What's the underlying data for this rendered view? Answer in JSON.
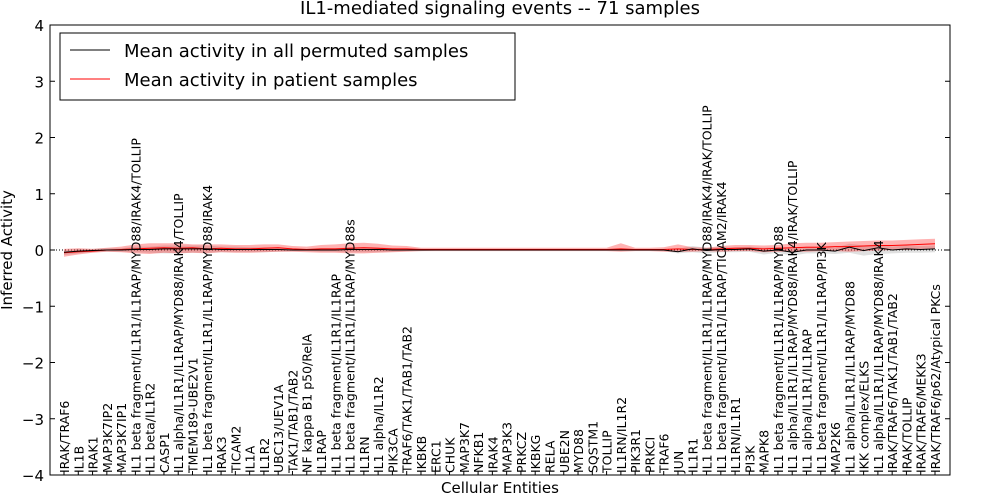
{
  "chart_data": {
    "type": "line",
    "title": "IL1-mediated signaling events -- 71 samples",
    "xlabel": "Cellular Entities",
    "ylabel": "Inferred Activity",
    "ylim": [
      -4,
      4
    ],
    "yticks": [
      "4",
      "3",
      "2",
      "1",
      "0",
      "−1",
      "−2",
      "−3",
      "−4"
    ],
    "ytick_values": [
      4,
      3,
      2,
      1,
      0,
      -1,
      -2,
      -3,
      -4
    ],
    "legend": {
      "position": "top-left",
      "entries": [
        {
          "label": "Mean activity in all permuted samples",
          "color": "#000000"
        },
        {
          "label": "Mean activity in patient samples",
          "color": "#ff0000"
        }
      ]
    },
    "categories": [
      "IRAK/TRAF6",
      "IL1B",
      "IRAK1",
      "MAP3K7IP2",
      "MAP3K7IP1",
      "IL1 beta fragment/IL1R1/IL1RAP/MYD88/IRAK4/TOLLIP",
      "IL1 beta/IL1R2",
      "CASP1",
      "IL1 alpha/IL1R1/IL1RAP/MYD88/IRAK4/TOLLIP",
      "TMEM189-UBE2V1",
      "IL1 beta fragment/IL1R1/IL1RAP/MYD88/IRAK4",
      "IRAK3",
      "TICAM2",
      "IL1A",
      "IL1R2",
      "UBC13/UEV1A",
      "TAK1/TAB1/TAB2",
      "NF kappa B1 p50/RelA",
      "IL1RAP",
      "IL1 beta fragment/IL1R1/IL1RAP",
      "IL1 beta fragment/IL1R1/IL1RAP/MYD88s",
      "IL1RN",
      "IL1 alpha/IL1R2",
      "PIK3CA",
      "TRAF6/TAK1/TAB1/TAB2",
      "IKBKB",
      "ERC1",
      "CHUK",
      "MAP3K7",
      "NFKB1",
      "IRAK4",
      "MAP3K3",
      "PRKCZ",
      "IKBKG",
      "RELA",
      "UBE2N",
      "MYD88",
      "SQSTM1",
      "TOLLIP",
      "IL1RN/IL1R2",
      "PIK3R1",
      "PRKCI",
      "TRAF6",
      "JUN",
      "IL1R1",
      "IL1 beta fragment/IL1R1/IL1RAP/MYD88/IRAK4/IRAK/TOLLIP",
      "IL1 beta fragment/IL1R1/IL1RAP/TICAM2/IRAK4",
      "IL1RN/IL1R1",
      "PI3K",
      "MAPK8",
      "IL1 beta fragment/IL1R1/IL1RAP/MYD88",
      "IL1 alpha/IL1R1/IL1RAP/MYD88/IRAK4/IRAK/TOLLIP",
      "IL1 alpha/IL1R1/IL1RAP",
      "IL1 beta fragment/IL1R1/IL1RAP/PI3K",
      "MAP2K6",
      "IL1 alpha/IL1R1/IL1RAP/MYD88",
      "IKK complex/ELKS",
      "IL1 alpha/IL1R1/IL1RAP/MYD88/IRAK4",
      "IRAK/TRAF6/TAK1/TAB1/TAB2",
      "IRAK/TOLLIP",
      "IRAK/TRAF6/MEKK3",
      "IRAK/TRAF6/p62/Atypical PKCs"
    ],
    "series": [
      {
        "name": "Mean activity in all permuted samples",
        "color": "#000000",
        "values": [
          -0.04,
          -0.02,
          -0.01,
          0.0,
          0.0,
          0.01,
          0.01,
          0.02,
          0.02,
          0.02,
          0.02,
          0.01,
          0.01,
          0.01,
          0.01,
          0.01,
          0.0,
          0.0,
          0.0,
          0.0,
          0.01,
          0.01,
          0.01,
          0.0,
          0.0,
          0.0,
          0.0,
          0.0,
          0.0,
          0.0,
          0.0,
          0.0,
          0.0,
          0.0,
          0.0,
          0.0,
          0.0,
          0.0,
          0.0,
          0.0,
          0.0,
          0.0,
          0.0,
          -0.03,
          0.02,
          -0.01,
          0.01,
          0.01,
          0.02,
          -0.02,
          0.0,
          -0.04,
          0.0,
          0.0,
          -0.02,
          0.05,
          -0.01,
          0.04,
          0.0,
          0.02,
          0.01,
          0.02
        ],
        "band_low": [
          -0.09,
          -0.06,
          -0.04,
          -0.03,
          -0.03,
          -0.04,
          -0.05,
          -0.06,
          -0.06,
          -0.05,
          -0.05,
          -0.04,
          -0.04,
          -0.04,
          -0.04,
          -0.03,
          -0.02,
          -0.02,
          -0.03,
          -0.03,
          -0.04,
          -0.04,
          -0.04,
          -0.03,
          -0.02,
          -0.02,
          -0.01,
          -0.01,
          -0.01,
          -0.01,
          -0.01,
          -0.01,
          -0.01,
          -0.01,
          -0.01,
          -0.01,
          -0.01,
          -0.01,
          -0.01,
          -0.01,
          -0.01,
          -0.01,
          -0.02,
          -0.06,
          -0.04,
          -0.06,
          -0.04,
          -0.04,
          -0.03,
          -0.08,
          -0.05,
          -0.1,
          -0.06,
          -0.06,
          -0.07,
          -0.05,
          -0.1,
          -0.07,
          -0.06,
          -0.05,
          -0.05,
          -0.04
        ],
        "band_high": [
          0.0,
          0.02,
          0.02,
          0.03,
          0.03,
          0.06,
          0.06,
          0.08,
          0.08,
          0.08,
          0.08,
          0.06,
          0.06,
          0.05,
          0.05,
          0.04,
          0.02,
          0.02,
          0.03,
          0.03,
          0.05,
          0.05,
          0.05,
          0.03,
          0.02,
          0.02,
          0.01,
          0.01,
          0.01,
          0.01,
          0.01,
          0.01,
          0.01,
          0.01,
          0.01,
          0.01,
          0.01,
          0.01,
          0.01,
          0.01,
          0.01,
          0.01,
          0.02,
          0.02,
          0.07,
          0.04,
          0.05,
          0.05,
          0.06,
          0.04,
          0.05,
          0.02,
          0.06,
          0.06,
          0.04,
          0.11,
          0.08,
          0.1,
          0.06,
          0.08,
          0.07,
          0.08
        ]
      },
      {
        "name": "Mean activity in patient samples",
        "color": "#ff0000",
        "values": [
          -0.05,
          -0.03,
          -0.02,
          0.0,
          0.01,
          0.02,
          0.03,
          0.04,
          0.03,
          0.04,
          0.02,
          0.03,
          0.02,
          0.02,
          0.03,
          0.04,
          0.02,
          0.01,
          0.02,
          0.02,
          0.03,
          0.04,
          0.03,
          0.02,
          0.02,
          0.01,
          0.01,
          0.01,
          0.01,
          0.01,
          0.01,
          0.01,
          0.01,
          0.01,
          0.01,
          0.01,
          0.01,
          0.01,
          0.01,
          0.02,
          0.01,
          0.01,
          0.01,
          0.02,
          0.01,
          0.01,
          0.02,
          0.03,
          0.03,
          0.02,
          0.03,
          0.04,
          0.05,
          0.05,
          0.06,
          0.06,
          0.07,
          0.08,
          0.08,
          0.09,
          0.1,
          0.11
        ],
        "band_low": [
          -0.12,
          -0.08,
          -0.05,
          -0.03,
          -0.04,
          -0.06,
          -0.07,
          -0.05,
          -0.06,
          -0.05,
          -0.06,
          -0.04,
          -0.05,
          -0.05,
          -0.04,
          -0.03,
          -0.03,
          -0.04,
          -0.05,
          -0.05,
          -0.06,
          -0.06,
          -0.05,
          -0.04,
          -0.03,
          -0.02,
          -0.02,
          -0.02,
          -0.02,
          -0.02,
          -0.02,
          -0.02,
          -0.02,
          -0.02,
          -0.02,
          -0.02,
          -0.02,
          -0.02,
          -0.02,
          -0.03,
          -0.02,
          -0.02,
          -0.03,
          -0.03,
          -0.03,
          -0.02,
          -0.03,
          -0.02,
          -0.02,
          -0.04,
          -0.03,
          -0.03,
          -0.03,
          -0.02,
          -0.02,
          -0.03,
          -0.02,
          -0.01,
          0.0,
          0.0,
          0.01,
          0.02
        ],
        "band_high": [
          0.02,
          0.03,
          0.02,
          0.04,
          0.06,
          0.1,
          0.12,
          0.12,
          0.12,
          0.1,
          0.1,
          0.1,
          0.09,
          0.09,
          0.1,
          0.1,
          0.07,
          0.06,
          0.09,
          0.1,
          0.12,
          0.13,
          0.11,
          0.08,
          0.07,
          0.04,
          0.04,
          0.04,
          0.04,
          0.04,
          0.04,
          0.04,
          0.04,
          0.04,
          0.04,
          0.04,
          0.04,
          0.04,
          0.04,
          0.12,
          0.04,
          0.04,
          0.05,
          0.1,
          0.05,
          0.04,
          0.07,
          0.09,
          0.09,
          0.08,
          0.09,
          0.12,
          0.13,
          0.13,
          0.14,
          0.15,
          0.16,
          0.17,
          0.17,
          0.18,
          0.19,
          0.2
        ]
      }
    ]
  }
}
